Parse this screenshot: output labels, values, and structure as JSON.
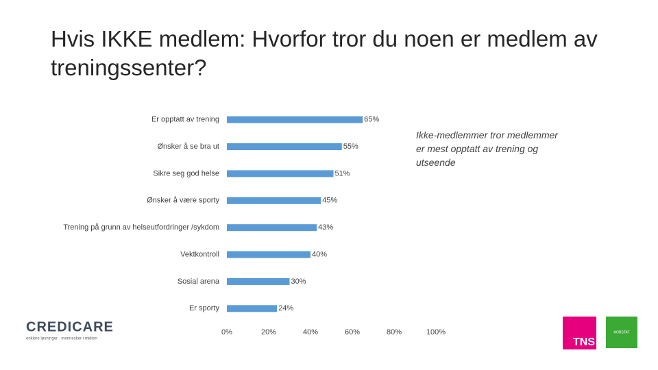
{
  "chart_data": {
    "type": "bar",
    "orientation": "horizontal",
    "title": "Hvis IKKE medlem: Hvorfor tror du noen er medlem av treningssenter?",
    "annotation": "Ikke-medlemmer tror medlemmer er mest opptatt av trening og utseende",
    "categories": [
      "Er opptatt av trening",
      "Ønsker å se bra ut",
      "Sikre seg god helse",
      "Ønsker å være sporty",
      "Trening på grunn av helseutfordringer /sykdom",
      "Vektkontroll",
      "Sosial arena",
      "Er sporty"
    ],
    "values": [
      65,
      55,
      51,
      45,
      43,
      40,
      30,
      24
    ],
    "value_labels": [
      "65%",
      "55%",
      "51%",
      "45%",
      "43%",
      "40%",
      "30%",
      "24%"
    ],
    "color": "#5b9bd5",
    "xlim": [
      0,
      100
    ],
    "xticks": [
      {
        "value": 0,
        "label": "0%"
      },
      {
        "value": 20,
        "label": "20%"
      },
      {
        "value": 40,
        "label": "40%"
      },
      {
        "value": 60,
        "label": "60%"
      },
      {
        "value": 80,
        "label": "80%"
      },
      {
        "value": 100,
        "label": "100%"
      }
    ],
    "grid": false
  },
  "logos": {
    "credicare": "CREDICARE",
    "credicare_tagline": "enklere løsninger · mennesker i midten",
    "tns": "TNS",
    "norstat": "NORSTAT"
  }
}
